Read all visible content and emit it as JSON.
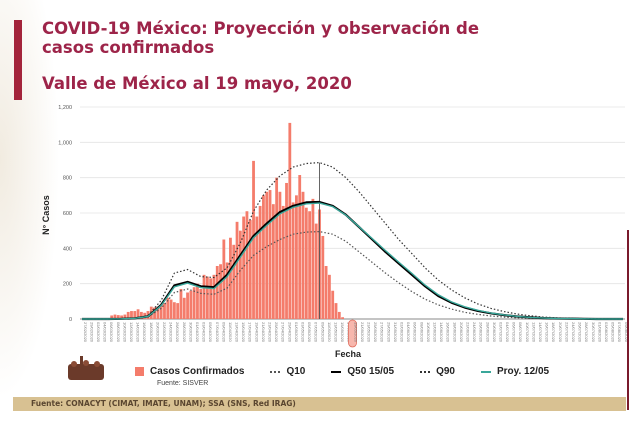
{
  "slide": {
    "title": "COVID-19 México: Proyección y observación de casos confirmados",
    "subtitle": "Valle de México al 19 mayo, 2020",
    "footer": "Fuente: CONACYT (CIMAT, IMATE, UNAM);   SSA (SNS, Red IRAG)",
    "colors": {
      "accent": "#9d2449",
      "footer_bg": "#d8c192"
    }
  },
  "chart_data": {
    "type": "bar",
    "title": "",
    "xlabel": "Fecha",
    "ylabel": "N° Casos",
    "ylim": [
      0,
      1200
    ],
    "yticks": [
      "0",
      "200",
      "400",
      "600",
      "800",
      "1,000",
      "1,200"
    ],
    "grid": true,
    "legend_position": "bottom",
    "source_note": "Fuente: SISVER",
    "highlighted_date": "19/05/2020",
    "vertical_marker_date": "09/05/2020",
    "xtick_labels": [
      "27/02/2020",
      "29/02/2020",
      "02/03/2020",
      "04/03/2020",
      "06/03/2020",
      "08/03/2020",
      "10/03/2020",
      "12/03/2020",
      "14/03/2020",
      "16/03/2020",
      "18/03/2020",
      "20/03/2020",
      "22/03/2020",
      "24/03/2020",
      "26/03/2020",
      "28/03/2020",
      "30/03/2020",
      "01/04/2020",
      "03/04/2020",
      "05/04/2020",
      "07/04/2020",
      "09/04/2020",
      "11/04/2020",
      "13/04/2020",
      "15/04/2020",
      "17/04/2020",
      "19/04/2020",
      "21/04/2020",
      "23/04/2020",
      "25/04/2020",
      "27/04/2020",
      "29/04/2020",
      "01/05/2020",
      "03/05/2020",
      "05/05/2020",
      "07/05/2020",
      "09/05/2020",
      "11/05/2020",
      "13/05/2020",
      "15/05/2020",
      "17/05/2020",
      "19/05/2020",
      "21/05/2020",
      "23/05/2020",
      "25/05/2020",
      "27/05/2020",
      "29/05/2020",
      "31/05/2020",
      "02/06/2020",
      "04/06/2020",
      "06/06/2020",
      "08/06/2020",
      "10/06/2020",
      "12/06/2020",
      "14/06/2020",
      "16/06/2020",
      "18/06/2020",
      "20/06/2020",
      "22/06/2020",
      "24/06/2020",
      "26/06/2020",
      "28/06/2020",
      "30/06/2020",
      "02/07/2020",
      "04/07/2020",
      "06/07/2020",
      "08/07/2020",
      "10/07/2020",
      "12/07/2020",
      "14/07/2020",
      "16/07/2020",
      "18/07/2020",
      "20/07/2020",
      "22/07/2020",
      "24/07/2020",
      "26/07/2020",
      "28/07/2020",
      "30/07/2020",
      "01/08/2020",
      "03/08/2020",
      "05/08/2020",
      "07/08/2020",
      "09/08/2020"
    ],
    "bars": {
      "name": "Casos Confirmados",
      "color": "#f47c6b",
      "start_date": "27/02/2020",
      "values": [
        0,
        0,
        0,
        1,
        0,
        1,
        2,
        3,
        5,
        20,
        25,
        22,
        20,
        25,
        40,
        45,
        45,
        55,
        40,
        35,
        45,
        70,
        65,
        70,
        80,
        90,
        120,
        110,
        95,
        90,
        170,
        120,
        150,
        160,
        180,
        200,
        170,
        250,
        240,
        230,
        250,
        300,
        310,
        450,
        320,
        460,
        420,
        550,
        500,
        580,
        610,
        560,
        895,
        580,
        640,
        700,
        720,
        730,
        650,
        800,
        720,
        640,
        770,
        1110,
        660,
        700,
        815,
        720,
        630,
        610,
        680,
        540,
        620,
        470,
        300,
        250,
        160,
        90,
        40,
        10,
        0
      ]
    },
    "curve_x": [
      "27/02/2020",
      "02/03/2020",
      "06/03/2020",
      "10/03/2020",
      "14/03/2020",
      "18/03/2020",
      "22/03/2020",
      "26/03/2020",
      "30/03/2020",
      "03/04/2020",
      "07/04/2020",
      "11/04/2020",
      "15/04/2020",
      "19/04/2020",
      "23/04/2020",
      "27/04/2020",
      "01/05/2020",
      "05/05/2020",
      "09/05/2020",
      "13/05/2020",
      "17/05/2020",
      "21/05/2020",
      "25/05/2020",
      "29/05/2020",
      "02/06/2020",
      "06/06/2020",
      "10/06/2020",
      "14/06/2020",
      "18/06/2020",
      "22/06/2020",
      "26/06/2020",
      "30/06/2020",
      "04/07/2020",
      "08/07/2020",
      "12/07/2020",
      "16/07/2020",
      "20/07/2020",
      "24/07/2020",
      "28/07/2020",
      "01/08/2020",
      "05/08/2020",
      "09/08/2020"
    ],
    "series": [
      {
        "name": "Q10",
        "style": "dotted",
        "color": "#555555",
        "values": [
          0,
          0,
          0,
          1,
          3,
          11,
          60,
          150,
          170,
          145,
          140,
          175,
          275,
          360,
          410,
          450,
          480,
          492,
          495,
          480,
          440,
          380,
          320,
          260,
          205,
          155,
          112,
          80,
          56,
          38,
          26,
          17,
          11,
          7,
          4,
          2,
          1,
          1,
          0,
          0,
          0,
          0
        ]
      },
      {
        "name": "Q50 15/05",
        "style": "solid",
        "color": "#000000",
        "values": [
          0,
          0,
          0,
          1,
          4,
          15,
          80,
          190,
          210,
          185,
          180,
          250,
          360,
          470,
          540,
          605,
          640,
          660,
          662,
          640,
          590,
          520,
          450,
          380,
          315,
          250,
          185,
          130,
          92,
          65,
          46,
          32,
          22,
          14,
          9,
          5,
          3,
          2,
          1,
          0,
          0,
          0
        ]
      },
      {
        "name": "Q90",
        "style": "dotted",
        "color": "#333333",
        "values": [
          0,
          0,
          0,
          1,
          5,
          20,
          105,
          260,
          280,
          240,
          235,
          290,
          430,
          610,
          730,
          810,
          860,
          880,
          885,
          860,
          800,
          720,
          630,
          540,
          450,
          370,
          290,
          220,
          165,
          120,
          85,
          60,
          42,
          28,
          18,
          11,
          7,
          4,
          2,
          1,
          0,
          0
        ]
      },
      {
        "name": "Proy. 12/05",
        "style": "solid",
        "color": "#3aa79a",
        "values": [
          0,
          0,
          0,
          1,
          4,
          14,
          76,
          182,
          203,
          178,
          172,
          240,
          350,
          460,
          530,
          595,
          632,
          652,
          656,
          636,
          588,
          522,
          455,
          387,
          322,
          258,
          192,
          137,
          97,
          69,
          49,
          34,
          23,
          15,
          9,
          5,
          3,
          2,
          1,
          0,
          0,
          0
        ]
      }
    ]
  }
}
